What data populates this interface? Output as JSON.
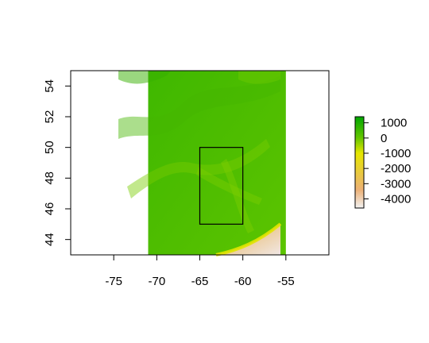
{
  "chart_data": {
    "type": "heatmap",
    "title": "",
    "xlabel": "",
    "ylabel": "",
    "xlim": [
      -80,
      -50
    ],
    "ylim": [
      43,
      55
    ],
    "x_ticks": [
      -75,
      -70,
      -65,
      -60,
      -55
    ],
    "y_ticks": [
      44,
      46,
      48,
      50,
      52,
      54
    ],
    "raster_extent": {
      "x": [
        -71,
        -55
      ],
      "y": [
        43,
        55
      ]
    },
    "raster_description": "elevation / bathymetry raster",
    "highlight_box": {
      "x": [
        -65,
        -60
      ],
      "y": [
        45,
        50
      ]
    },
    "legend": {
      "position": "right",
      "ticks": [
        1000,
        0,
        -1000,
        -2000,
        -3000,
        -4000
      ],
      "range": [
        -4600,
        1400
      ],
      "colors": [
        "#f2f2f2",
        "#ecb176",
        "#e6e600",
        "#63c600",
        "#00a600"
      ]
    }
  }
}
